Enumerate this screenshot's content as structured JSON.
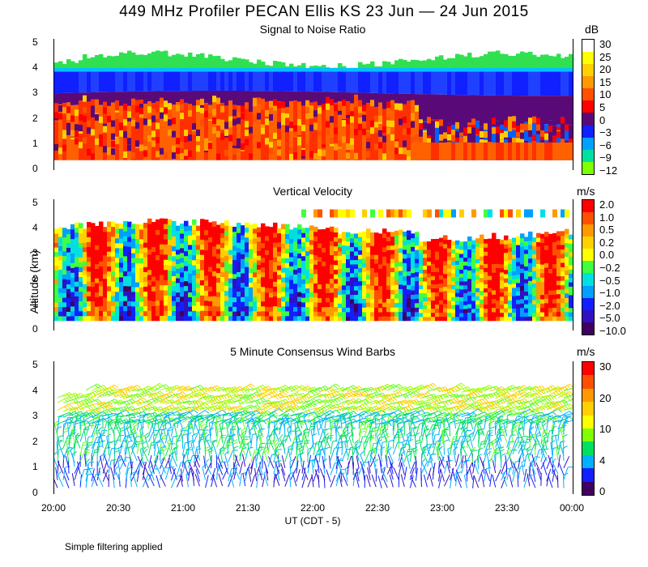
{
  "title": "449 MHz Profiler PECAN Ellis KS 23 Jun — 24 Jun 2015",
  "y_axis_title": "Altitude (km)",
  "x_axis_title": "UT  (CDT - 5)",
  "footer_note": "Simple filtering applied",
  "x_ticks": [
    "20:00",
    "20:30",
    "21:00",
    "21:30",
    "22:00",
    "22:30",
    "23:00",
    "23:30",
    "00:00"
  ],
  "y_ticks": [
    "0",
    "1",
    "2",
    "3",
    "4",
    "5"
  ],
  "chart_data": [
    {
      "type": "heatmap",
      "title": "Signal to Noise Ratio",
      "ylabel": "Altitude (km)",
      "xlabel": "UT  (CDT - 5)",
      "ylim": [
        0,
        5
      ],
      "x_range": [
        "20:00",
        "00:00"
      ],
      "colorbar_unit": "dB",
      "colorbar_ticks": [
        "30",
        "25",
        "20",
        "15",
        "10",
        "5",
        "0",
        "−3",
        "−6",
        "−9",
        "−12"
      ],
      "colorbar_colors": [
        "#ffffff",
        "#ffff00",
        "#ffd000",
        "#ff9900",
        "#ff5000",
        "#ff0000",
        "#5a0a78",
        "#1020ff",
        "#00a0ff",
        "#00e0a0",
        "#80ff00"
      ],
      "layers_km": [
        {
          "from": 0.2,
          "to": 2.5,
          "range_db": "10 to 25",
          "description_color": "red-orange"
        },
        {
          "from": 2.5,
          "to": 3.0,
          "range_db": "0 to 5",
          "description_color": "purple"
        },
        {
          "from": 3.0,
          "to": 3.8,
          "range_db": "-6 to -3",
          "description_color": "blue"
        },
        {
          "from": 3.8,
          "to": 4.4,
          "range_db": "-12 to -9",
          "description_color": "green"
        }
      ]
    },
    {
      "type": "heatmap",
      "title": "Vertical Velocity",
      "ylim": [
        0,
        5
      ],
      "colorbar_unit": "m/s",
      "colorbar_ticks": [
        "2.0",
        "1.0",
        "0.5",
        "0.2",
        "0.0",
        "−0.2",
        "−0.5",
        "−1.0",
        "−2.0",
        "−5.0",
        "−10.0"
      ],
      "colorbar_colors": [
        "#ff0000",
        "#ff5000",
        "#ff9900",
        "#ffd000",
        "#ffff00",
        "#40ff40",
        "#00e0e0",
        "#00a0ff",
        "#1020ff",
        "#3010c0",
        "#400060"
      ],
      "range_ms": [
        -10.0,
        2.0
      ]
    },
    {
      "type": "scatter",
      "title": "5 Minute Consensus Wind Barbs",
      "ylim": [
        0,
        5
      ],
      "colorbar_unit": "m/s",
      "colorbar_ticks": [
        "30",
        "20",
        "10",
        "4",
        "0"
      ],
      "colorbar_colors": [
        "#ff0000",
        "#ff5000",
        "#ff9900",
        "#ffd000",
        "#ffff00",
        "#80ff00",
        "#00e060",
        "#00b0ff",
        "#1020ff",
        "#400060"
      ],
      "speed_by_altitude_km": [
        {
          "from": 0.0,
          "to": 1.0,
          "speed_ms": "0 to 8"
        },
        {
          "from": 1.0,
          "to": 3.0,
          "speed_ms": "5 to 12"
        },
        {
          "from": 3.0,
          "to": 4.0,
          "speed_ms": "12 to 20"
        },
        {
          "from": 4.0,
          "to": 5.0,
          "speed_ms": "10 to 15"
        }
      ]
    }
  ]
}
